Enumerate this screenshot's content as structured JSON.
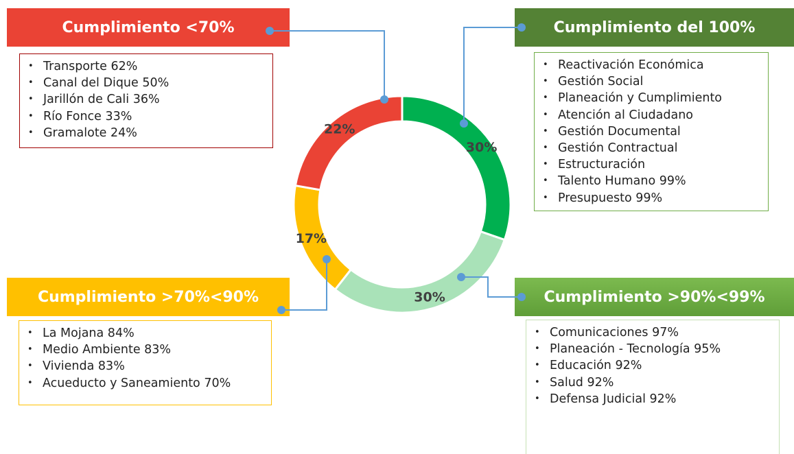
{
  "chart_data": {
    "type": "pie",
    "donut": true,
    "categories": [
      "Cumplimiento del 100%",
      "Cumplimiento >90%<99%",
      "Cumplimiento >70%<90%",
      "Cumplimiento <70%"
    ],
    "values": [
      30,
      30,
      17,
      22
    ],
    "value_labels": [
      "30%",
      "30%",
      "17%",
      "22%"
    ],
    "colors": [
      "#00b050",
      "#a9e2b8",
      "#ffc000",
      "#ea4335"
    ],
    "items": [
      [
        "Reactivación Económica",
        "Gestión Social",
        "Planeación y Cumplimiento",
        "Atención al Ciudadano",
        "Gestión Documental",
        "Gestión Contractual",
        "Estructuración",
        "Talento Humano 99%",
        "Presupuesto 99%"
      ],
      [
        "Comunicaciones 97%",
        "Planeación - Tecnología 95%",
        "Educación 92%",
        "Salud 92%",
        "Defensa Judicial 92%"
      ],
      [
        "La Mojana 84%",
        "Medio Ambiente 83%",
        "Vivienda 83%",
        "Acueducto y Saneamiento 70%"
      ],
      [
        "Transporte 62%",
        "Canal del Dique 50%",
        "Jarillón de Cali 36%",
        "Río Fonce 33%",
        "Gramalote 24%"
      ]
    ]
  }
}
